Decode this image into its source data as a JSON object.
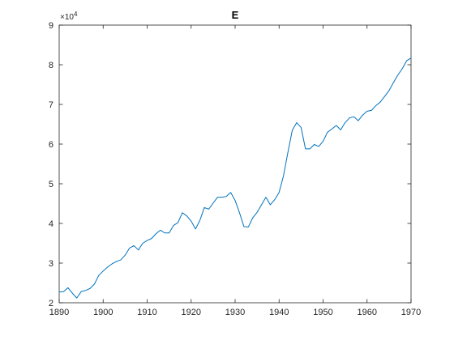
{
  "chart_data": {
    "type": "line",
    "title": "E",
    "xlabel": "",
    "ylabel": "",
    "xlim": [
      1890,
      1970
    ],
    "ylim": [
      2,
      9
    ],
    "y_exponent_label": "×10",
    "y_exponent_power": "4",
    "grid": false,
    "line_color": "#0072BD",
    "x_ticks": [
      1890,
      1900,
      1910,
      1920,
      1930,
      1940,
      1950,
      1960,
      1970
    ],
    "y_ticks": [
      2,
      3,
      4,
      5,
      6,
      7,
      8,
      9
    ],
    "x": [
      1890,
      1891,
      1892,
      1893,
      1894,
      1895,
      1896,
      1897,
      1898,
      1899,
      1900,
      1901,
      1902,
      1903,
      1904,
      1905,
      1906,
      1907,
      1908,
      1909,
      1910,
      1911,
      1912,
      1913,
      1914,
      1915,
      1916,
      1917,
      1918,
      1919,
      1920,
      1921,
      1922,
      1923,
      1924,
      1925,
      1926,
      1927,
      1928,
      1929,
      1930,
      1931,
      1932,
      1933,
      1934,
      1935,
      1936,
      1937,
      1938,
      1939,
      1940,
      1941,
      1942,
      1943,
      1944,
      1945,
      1946,
      1947,
      1948,
      1949,
      1950,
      1951,
      1952,
      1953,
      1954,
      1955,
      1956,
      1957,
      1958,
      1959,
      1960,
      1961,
      1962,
      1963,
      1964,
      1965,
      1966,
      1967,
      1968,
      1969,
      1970
    ],
    "series": [
      {
        "values": [
          2.27,
          2.28,
          2.38,
          2.24,
          2.12,
          2.28,
          2.31,
          2.36,
          2.47,
          2.69,
          2.8,
          2.9,
          2.98,
          3.04,
          3.08,
          3.2,
          3.38,
          3.44,
          3.33,
          3.5,
          3.57,
          3.62,
          3.74,
          3.83,
          3.76,
          3.76,
          3.95,
          4.02,
          4.27,
          4.19,
          4.06,
          3.86,
          4.08,
          4.4,
          4.36,
          4.51,
          4.66,
          4.66,
          4.68,
          4.78,
          4.58,
          4.27,
          3.92,
          3.91,
          4.14,
          4.28,
          4.47,
          4.66,
          4.47,
          4.6,
          4.78,
          5.2,
          5.79,
          6.35,
          6.54,
          6.42,
          5.88,
          5.88,
          5.99,
          5.94,
          6.07,
          6.3,
          6.38,
          6.47,
          6.36,
          6.54,
          6.66,
          6.69,
          6.59,
          6.73,
          6.83,
          6.85,
          6.97,
          7.06,
          7.2,
          7.35,
          7.55,
          7.74,
          7.9,
          8.1,
          8.17
        ]
      }
    ]
  }
}
